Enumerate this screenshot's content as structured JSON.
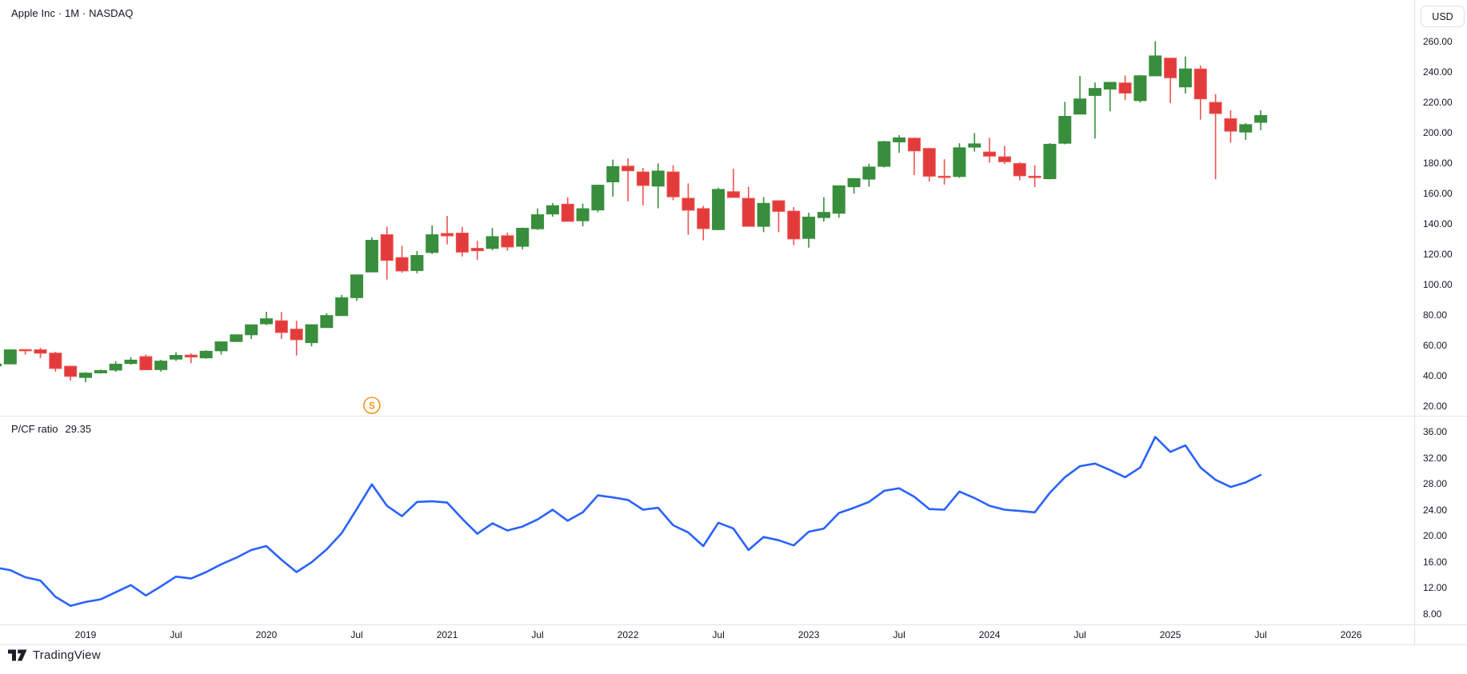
{
  "header": {
    "symbol_title": "Apple Inc · 1M · NASDAQ"
  },
  "price_axis": {
    "currency_label": "USD",
    "labels": [
      "260.00",
      "240.00",
      "220.00",
      "200.00",
      "180.00",
      "160.00",
      "140.00",
      "120.00",
      "100.00",
      "80.00",
      "60.00",
      "40.00",
      "20.00"
    ]
  },
  "pcf_axis": {
    "labels": [
      "36.00",
      "32.00",
      "28.00",
      "24.00",
      "20.00",
      "16.00",
      "12.00",
      "8.00"
    ]
  },
  "indicator": {
    "name": "P/CF ratio",
    "value": "29.35"
  },
  "time_axis": {
    "ticks": [
      {
        "label": "2019",
        "month_index": 6
      },
      {
        "label": "Jul",
        "month_index": 12
      },
      {
        "label": "2020",
        "month_index": 18
      },
      {
        "label": "Jul",
        "month_index": 24
      },
      {
        "label": "2021",
        "month_index": 30
      },
      {
        "label": "Jul",
        "month_index": 36
      },
      {
        "label": "2022",
        "month_index": 42
      },
      {
        "label": "Jul",
        "month_index": 48
      },
      {
        "label": "2023",
        "month_index": 54
      },
      {
        "label": "Jul",
        "month_index": 60
      },
      {
        "label": "2024",
        "month_index": 66
      },
      {
        "label": "Jul",
        "month_index": 72
      },
      {
        "label": "2025",
        "month_index": 78
      },
      {
        "label": "Jul",
        "month_index": 84
      },
      {
        "label": "2026",
        "month_index": 90
      }
    ]
  },
  "footer": {
    "logo_text": "TradingView"
  },
  "colors": {
    "up": "#388E3C",
    "down": "#E23B3B",
    "down_border": "#F05350",
    "line_blue": "#2962FF",
    "axis_text": "#131722",
    "border": "#E0E3EB",
    "split_orange": "#F7931A"
  },
  "chart_data": [
    {
      "type": "candlestick",
      "title": "Apple Inc · 1M · NASDAQ",
      "pane": "price",
      "x_unit": "month",
      "grid": false,
      "legend_position": "top-left",
      "y_ticks": [
        20,
        40,
        60,
        80,
        100,
        120,
        140,
        160,
        180,
        200,
        220,
        240,
        260
      ],
      "ylim": [
        13.5,
        287
      ],
      "up_color": "#388E3C",
      "down_color": "#E23B3B",
      "markers": [
        {
          "label": "S",
          "month": "2020-08",
          "meaning": "split"
        }
      ],
      "categories": [
        "2018-07",
        "2018-08",
        "2018-09",
        "2018-10",
        "2018-11",
        "2018-12",
        "2019-01",
        "2019-02",
        "2019-03",
        "2019-04",
        "2019-05",
        "2019-06",
        "2019-07",
        "2019-08",
        "2019-09",
        "2019-10",
        "2019-11",
        "2019-12",
        "2020-01",
        "2020-02",
        "2020-03",
        "2020-04",
        "2020-05",
        "2020-06",
        "2020-07",
        "2020-08",
        "2020-09",
        "2020-10",
        "2020-11",
        "2020-12",
        "2021-01",
        "2021-02",
        "2021-03",
        "2021-04",
        "2021-05",
        "2021-06",
        "2021-07",
        "2021-08",
        "2021-09",
        "2021-10",
        "2021-11",
        "2021-12",
        "2022-01",
        "2022-02",
        "2022-03",
        "2022-04",
        "2022-05",
        "2022-06",
        "2022-07",
        "2022-08",
        "2022-09",
        "2022-10",
        "2022-11",
        "2022-12",
        "2023-01",
        "2023-02",
        "2023-03",
        "2023-04",
        "2023-05",
        "2023-06",
        "2023-07",
        "2023-08",
        "2023-09",
        "2023-10",
        "2023-11",
        "2023-12",
        "2024-01",
        "2024-02",
        "2024-03",
        "2024-04",
        "2024-05",
        "2024-06",
        "2024-07",
        "2024-08",
        "2024-09",
        "2024-10",
        "2024-11",
        "2024-12",
        "2025-01",
        "2025-02",
        "2025-03",
        "2025-04",
        "2025-05",
        "2025-06",
        "2025-07"
      ],
      "ohlc": [
        [
          46.31,
          48.99,
          45.86,
          47.57
        ],
        [
          47.66,
          57.22,
          47.45,
          56.91
        ],
        [
          57.1,
          57.42,
          53.83,
          56.44
        ],
        [
          56.99,
          58.37,
          51.52,
          54.71
        ],
        [
          54.76,
          55.59,
          42.56,
          44.65
        ],
        [
          46.12,
          46.24,
          36.65,
          39.44
        ],
        [
          38.72,
          42.25,
          35.5,
          41.61
        ],
        [
          41.74,
          43.97,
          41.48,
          43.29
        ],
        [
          43.57,
          49.42,
          42.38,
          47.49
        ],
        [
          47.91,
          52.12,
          47.1,
          50.17
        ],
        [
          52.47,
          53.83,
          43.75,
          43.77
        ],
        [
          43.9,
          50.39,
          42.57,
          49.48
        ],
        [
          50.79,
          55.34,
          49.6,
          53.26
        ],
        [
          53.47,
          54.51,
          48.15,
          52.19
        ],
        [
          51.61,
          56.6,
          51.06,
          55.99
        ],
        [
          56.27,
          62.44,
          53.78,
          62.19
        ],
        [
          62.38,
          67.0,
          62.29,
          66.81
        ],
        [
          66.82,
          73.49,
          64.07,
          73.41
        ],
        [
          74.06,
          81.96,
          73.19,
          77.38
        ],
        [
          76.07,
          81.81,
          64.09,
          68.34
        ],
        [
          70.57,
          76.0,
          53.15,
          63.57
        ],
        [
          61.63,
          73.63,
          59.22,
          73.45
        ],
        [
          71.57,
          81.06,
          71.46,
          79.49
        ],
        [
          79.44,
          93.1,
          79.3,
          91.2
        ],
        [
          91.28,
          106.42,
          89.14,
          106.26
        ],
        [
          108.2,
          131.0,
          107.89,
          129.04
        ],
        [
          132.76,
          137.98,
          103.1,
          115.81
        ],
        [
          117.64,
          125.39,
          107.72,
          108.86
        ],
        [
          109.11,
          121.99,
          107.32,
          119.05
        ],
        [
          121.01,
          138.79,
          120.01,
          132.69
        ],
        [
          133.52,
          145.09,
          126.38,
          131.96
        ],
        [
          133.75,
          137.88,
          118.39,
          121.26
        ],
        [
          123.75,
          128.72,
          116.21,
          122.15
        ],
        [
          123.66,
          137.07,
          122.49,
          131.46
        ],
        [
          132.04,
          134.07,
          122.25,
          124.61
        ],
        [
          125.08,
          137.41,
          123.13,
          136.96
        ],
        [
          136.6,
          150.0,
          135.76,
          145.86
        ],
        [
          146.36,
          153.49,
          144.5,
          151.83
        ],
        [
          152.83,
          157.26,
          141.27,
          141.5
        ],
        [
          141.9,
          153.17,
          138.27,
          149.8
        ],
        [
          148.99,
          165.7,
          147.48,
          165.3
        ],
        [
          167.48,
          182.13,
          157.8,
          177.57
        ],
        [
          177.83,
          182.94,
          154.7,
          174.78
        ],
        [
          174.01,
          176.65,
          152.0,
          165.12
        ],
        [
          164.7,
          179.61,
          150.1,
          174.61
        ],
        [
          174.03,
          178.49,
          155.38,
          157.65
        ],
        [
          156.71,
          166.48,
          132.61,
          148.84
        ],
        [
          149.9,
          151.74,
          129.04,
          136.72
        ],
        [
          136.04,
          163.63,
          135.66,
          162.51
        ],
        [
          161.01,
          176.15,
          157.14,
          157.22
        ],
        [
          156.64,
          164.26,
          138.0,
          138.2
        ],
        [
          138.21,
          157.5,
          134.37,
          153.34
        ],
        [
          155.08,
          155.45,
          134.38,
          148.03
        ],
        [
          148.21,
          150.92,
          125.87,
          129.93
        ],
        [
          130.28,
          147.23,
          124.17,
          144.29
        ],
        [
          143.97,
          157.38,
          141.32,
          147.41
        ],
        [
          146.83,
          165.0,
          143.9,
          164.9
        ],
        [
          164.27,
          169.85,
          159.78,
          169.68
        ],
        [
          169.28,
          179.35,
          164.31,
          177.25
        ],
        [
          177.7,
          194.48,
          176.93,
          193.97
        ],
        [
          193.78,
          198.23,
          186.6,
          196.45
        ],
        [
          196.24,
          196.73,
          171.96,
          187.87
        ],
        [
          189.49,
          189.98,
          167.62,
          171.21
        ],
        [
          171.22,
          182.34,
          165.67,
          170.77
        ],
        [
          171.0,
          192.93,
          170.12,
          189.95
        ],
        [
          190.33,
          199.62,
          187.45,
          192.53
        ],
        [
          187.15,
          196.38,
          180.17,
          184.4
        ],
        [
          183.99,
          191.05,
          179.25,
          180.75
        ],
        [
          179.55,
          180.53,
          168.49,
          171.48
        ],
        [
          171.19,
          178.36,
          164.08,
          170.33
        ],
        [
          169.58,
          193.0,
          169.11,
          192.25
        ],
        [
          192.9,
          220.2,
          192.15,
          210.62
        ],
        [
          212.09,
          237.23,
          211.92,
          222.08
        ],
        [
          224.37,
          232.92,
          196.0,
          229.0
        ],
        [
          228.55,
          233.09,
          213.92,
          233.0
        ],
        [
          232.61,
          237.49,
          221.33,
          225.91
        ],
        [
          220.97,
          237.81,
          219.71,
          237.33
        ],
        [
          237.27,
          260.1,
          237.16,
          250.42
        ],
        [
          248.93,
          249.1,
          219.38,
          236.0
        ],
        [
          229.99,
          250.0,
          225.7,
          241.84
        ],
        [
          241.79,
          244.03,
          208.42,
          222.13
        ],
        [
          219.81,
          225.19,
          169.21,
          212.5
        ],
        [
          209.08,
          214.56,
          193.25,
          200.85
        ],
        [
          200.28,
          206.24,
          195.07,
          205.17
        ],
        [
          206.67,
          214.65,
          201.5,
          211.16
        ]
      ]
    },
    {
      "type": "line",
      "title": "P/CF ratio",
      "pane": "indicator",
      "current_value": 29.35,
      "color": "#2962FF",
      "grid": false,
      "y_ticks": [
        8,
        12,
        16,
        20,
        24,
        28,
        32,
        36
      ],
      "ylim": [
        6.2,
        38.3
      ],
      "values": [
        15.1,
        14.7,
        13.6,
        13.1,
        10.6,
        9.2,
        9.8,
        10.2,
        11.3,
        12.4,
        10.8,
        12.2,
        13.7,
        13.4,
        14.4,
        15.6,
        16.6,
        17.8,
        18.4,
        16.3,
        14.4,
        15.9,
        17.9,
        20.4,
        24.1,
        27.9,
        24.6,
        23.0,
        25.2,
        25.3,
        25.1,
        22.6,
        20.3,
        21.9,
        20.8,
        21.4,
        22.5,
        24.0,
        22.3,
        23.6,
        26.2,
        25.9,
        25.5,
        24.0,
        24.3,
        21.6,
        20.5,
        18.4,
        22.0,
        21.1,
        17.8,
        19.8,
        19.3,
        18.5,
        20.6,
        21.1,
        23.5,
        24.3,
        25.2,
        26.9,
        27.3,
        26.0,
        24.1,
        24.0,
        26.8,
        25.8,
        24.6,
        24.0,
        23.8,
        23.6,
        26.6,
        29.0,
        30.7,
        31.1,
        30.1,
        29.0,
        30.5,
        35.2,
        32.9,
        33.9,
        30.5,
        28.6,
        27.5,
        28.2,
        29.35
      ]
    }
  ]
}
